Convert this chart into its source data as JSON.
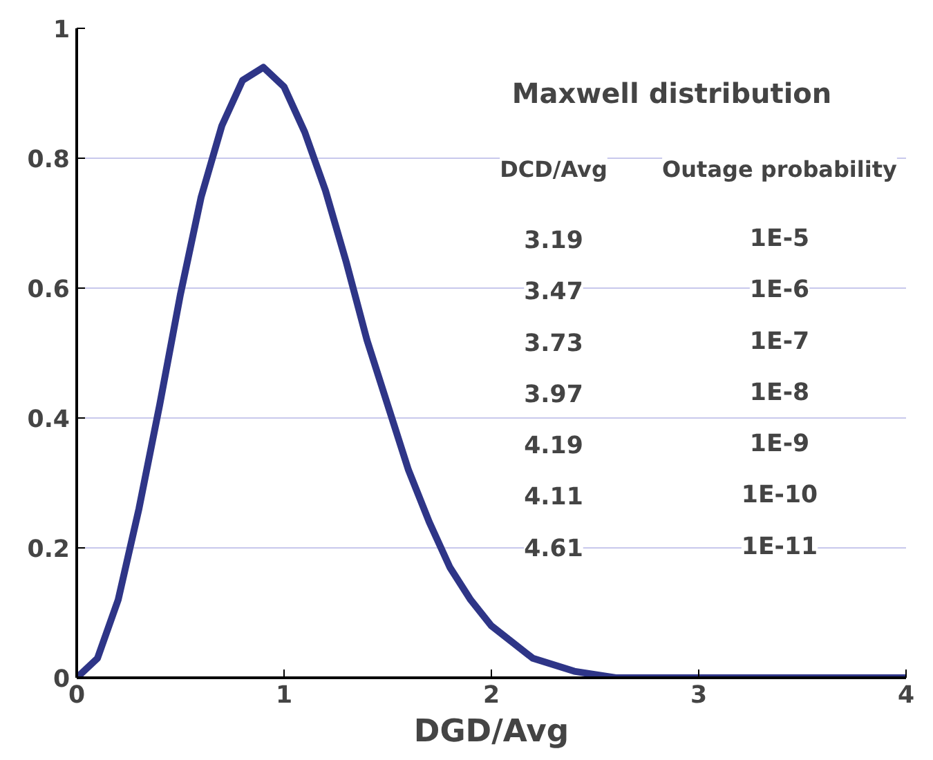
{
  "chart_data": {
    "type": "line",
    "title": "Maxwell distribution",
    "xlabel": "DGD/Avg",
    "x": [
      0,
      0.1,
      0.2,
      0.3,
      0.4,
      0.5,
      0.6,
      0.7,
      0.8,
      0.9,
      1.0,
      1.1,
      1.2,
      1.3,
      1.4,
      1.5,
      1.6,
      1.7,
      1.8,
      1.9,
      2.0,
      2.2,
      2.4,
      2.6,
      2.8,
      3.0,
      3.5,
      4.0
    ],
    "series": [
      {
        "color": "#2e3587",
        "values": [
          0,
          0.03,
          0.12,
          0.26,
          0.42,
          0.59,
          0.74,
          0.85,
          0.92,
          0.94,
          0.91,
          0.84,
          0.75,
          0.64,
          0.52,
          0.42,
          0.32,
          0.24,
          0.17,
          0.12,
          0.08,
          0.03,
          0.01,
          0,
          0,
          0,
          0,
          0
        ]
      }
    ],
    "xlim": [
      0,
      4
    ],
    "ylim": [
      0,
      1
    ],
    "xticks": [
      0,
      1,
      2,
      3,
      4
    ],
    "yticks": [
      0,
      0.2,
      0.4,
      0.6,
      0.8,
      1
    ],
    "grid": "y",
    "line_style": "solid",
    "annotations": [
      "DCD/Avg",
      "Outage probability",
      "3.19",
      "1E-5",
      "3.47",
      "1E-6",
      "3.73",
      "1E-7",
      "3.97",
      "1E-8",
      "4.19",
      "1E-9",
      "4.11",
      "1E-10",
      "4.61",
      "1E-11"
    ]
  }
}
